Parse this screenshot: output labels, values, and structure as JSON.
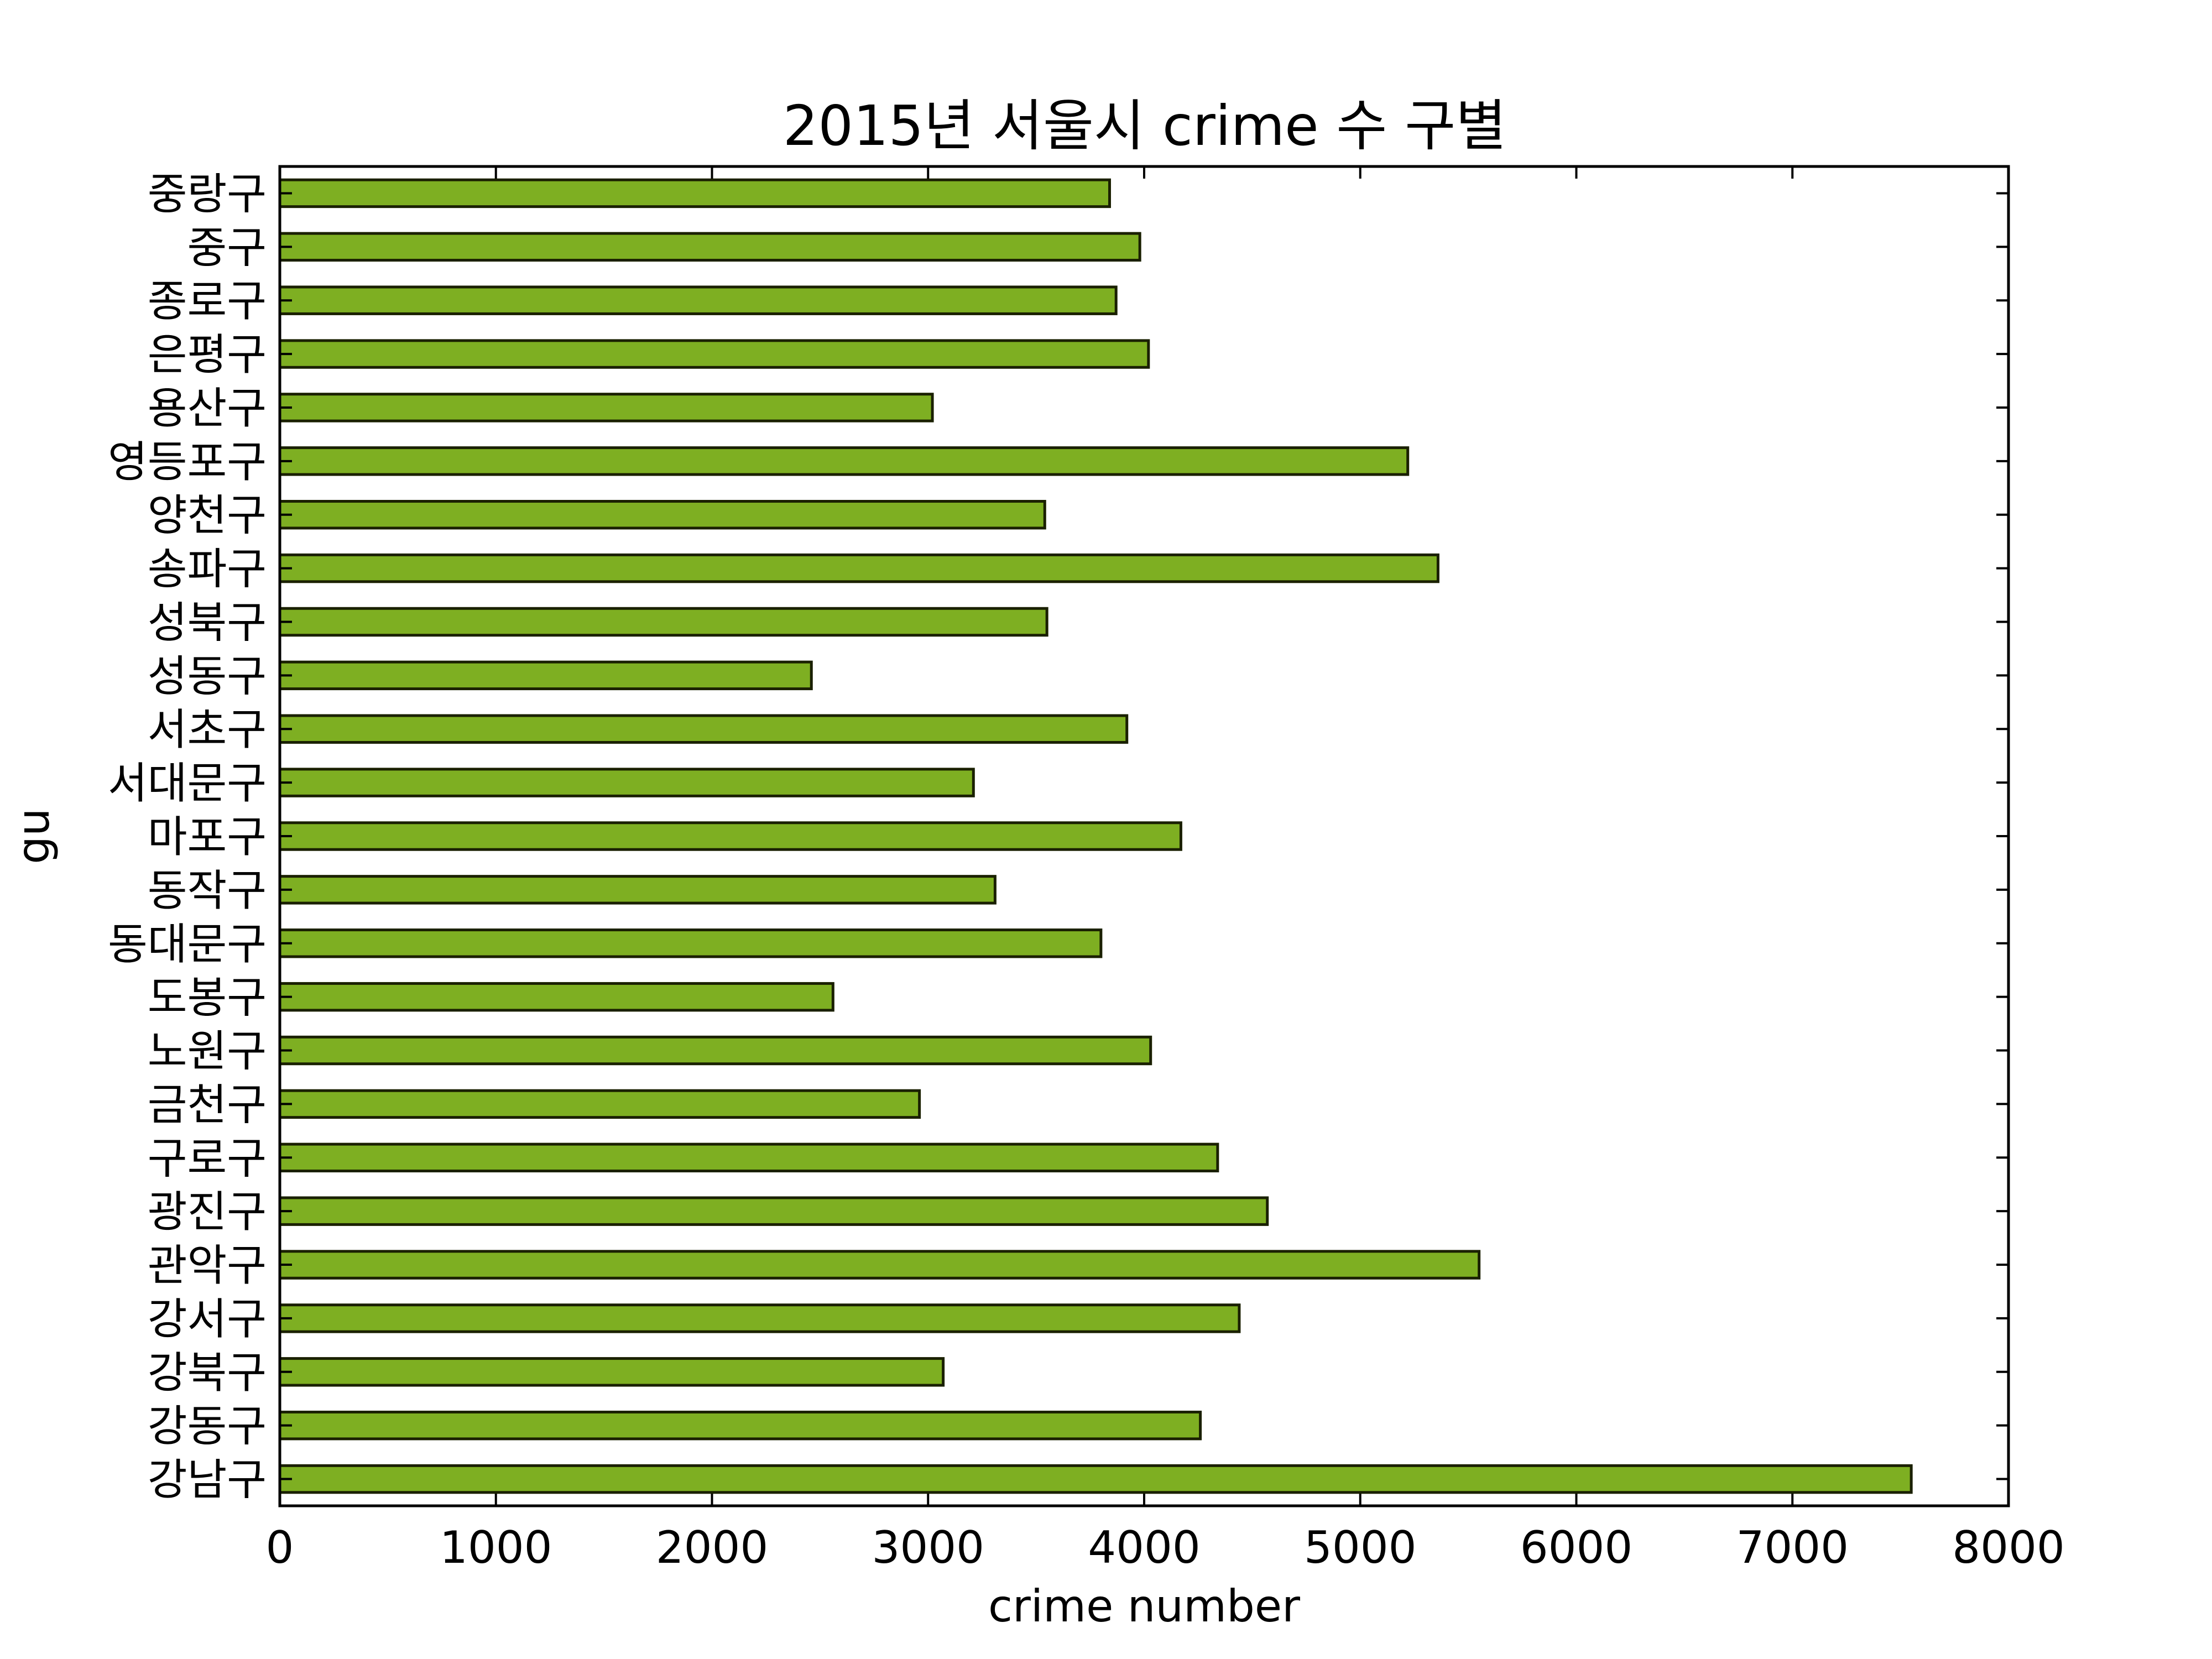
{
  "chart_data": {
    "type": "bar",
    "orientation": "horizontal",
    "title": "2015년 서울시 crime 수 구별",
    "xlabel": "crime number",
    "ylabel": "gu",
    "xlim": [
      0,
      8000
    ],
    "xticks": [
      "0",
      "1000",
      "2000",
      "3000",
      "4000",
      "5000",
      "6000",
      "7000",
      "8000"
    ],
    "grid": false,
    "bar_color": "#7eaf22",
    "bar_edge_color": "#1a2000",
    "categories": [
      "강남구",
      "강동구",
      "강북구",
      "강서구",
      "관악구",
      "광진구",
      "구로구",
      "금천구",
      "노원구",
      "도봉구",
      "동대문구",
      "동작구",
      "마포구",
      "서대문구",
      "서초구",
      "성동구",
      "성북구",
      "송파구",
      "양천구",
      "영등포구",
      "용산구",
      "은평구",
      "종로구",
      "중구",
      "중랑구"
    ],
    "values": [
      7550,
      4260,
      3070,
      4440,
      5550,
      4570,
      4340,
      2960,
      4030,
      2560,
      3800,
      3310,
      4170,
      3210,
      3920,
      2460,
      3550,
      5360,
      3540,
      5220,
      3020,
      4020,
      3870,
      3980,
      3840
    ]
  }
}
